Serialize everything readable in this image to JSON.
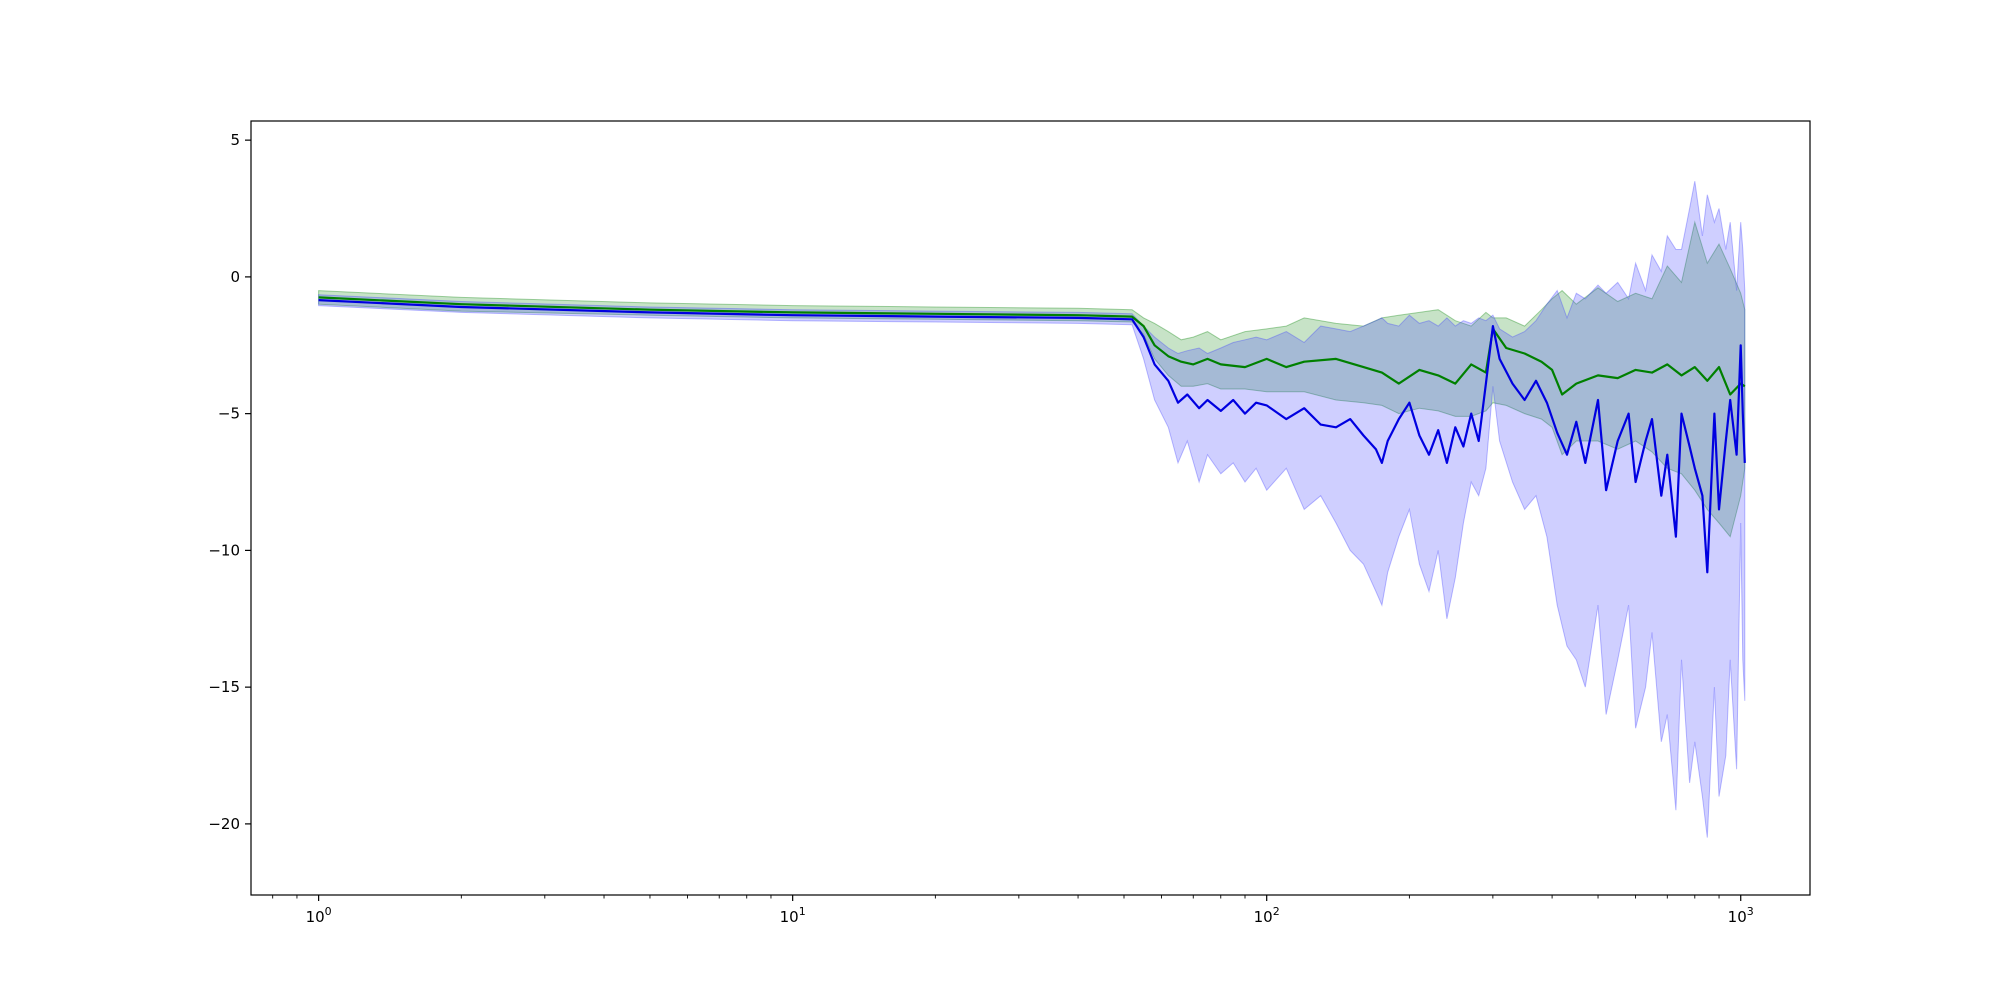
{
  "chart_data": {
    "type": "line",
    "x_scale": "log",
    "xlim": [
      0.72,
      1400
    ],
    "ylim": [
      -22.6,
      5.7
    ],
    "grid": false,
    "legend": "none",
    "x_ticks": [
      {
        "value": 1,
        "base": "10",
        "exp": "0"
      },
      {
        "value": 10,
        "base": "10",
        "exp": "1"
      },
      {
        "value": 100,
        "base": "10",
        "exp": "2"
      },
      {
        "value": 1000,
        "base": "10",
        "exp": "3"
      }
    ],
    "y_ticks": [
      {
        "value": 5,
        "label": "5"
      },
      {
        "value": 0,
        "label": "0"
      },
      {
        "value": -5,
        "label": "−5"
      },
      {
        "value": -10,
        "label": "−10"
      },
      {
        "value": -15,
        "label": "−15"
      },
      {
        "value": -20,
        "label": "−20"
      }
    ],
    "series": [
      {
        "color": "#008000",
        "band_color": "#008000",
        "band_opacity": 0.22,
        "x": [
          1,
          2,
          5,
          10,
          20,
          40,
          52,
          55,
          58,
          62,
          66,
          70,
          75,
          80,
          90,
          100,
          110,
          120,
          140,
          160,
          175,
          190,
          210,
          230,
          250,
          270,
          290,
          300,
          320,
          350,
          380,
          400,
          420,
          450,
          500,
          550,
          600,
          650,
          700,
          750,
          800,
          850,
          900,
          950,
          1000,
          1020
        ],
        "mean": [
          -0.75,
          -1.0,
          -1.2,
          -1.3,
          -1.35,
          -1.4,
          -1.45,
          -1.8,
          -2.5,
          -2.9,
          -3.1,
          -3.2,
          -3.0,
          -3.2,
          -3.3,
          -3.0,
          -3.3,
          -3.1,
          -3.0,
          -3.3,
          -3.5,
          -3.9,
          -3.4,
          -3.6,
          -3.9,
          -3.2,
          -3.5,
          -1.9,
          -2.6,
          -2.8,
          -3.1,
          -3.4,
          -4.3,
          -3.9,
          -3.6,
          -3.7,
          -3.4,
          -3.5,
          -3.2,
          -3.6,
          -3.3,
          -3.8,
          -3.3,
          -4.3,
          -3.9,
          -4.0
        ],
        "upper": [
          -0.5,
          -0.75,
          -0.95,
          -1.05,
          -1.1,
          -1.15,
          -1.2,
          -1.5,
          -1.7,
          -2.0,
          -2.3,
          -2.2,
          -2.0,
          -2.3,
          -2.0,
          -1.9,
          -1.8,
          -1.5,
          -1.7,
          -1.8,
          -1.5,
          -1.4,
          -1.3,
          -1.2,
          -1.6,
          -1.8,
          -1.3,
          -1.5,
          -1.5,
          -1.8,
          -1.2,
          -0.8,
          -0.5,
          -1.0,
          -0.4,
          -0.9,
          -0.6,
          -0.8,
          0.4,
          -0.2,
          2.0,
          0.5,
          1.2,
          0.3,
          -0.6,
          -1.2
        ],
        "lower": [
          -1.0,
          -1.25,
          -1.4,
          -1.5,
          -1.55,
          -1.6,
          -1.65,
          -2.1,
          -3.0,
          -3.6,
          -4.0,
          -4.0,
          -3.9,
          -4.1,
          -4.1,
          -4.2,
          -4.2,
          -4.2,
          -4.5,
          -4.6,
          -4.7,
          -5.0,
          -4.8,
          -4.9,
          -5.1,
          -5.1,
          -4.9,
          -4.6,
          -4.7,
          -5.0,
          -5.2,
          -5.5,
          -6.5,
          -6.0,
          -6.0,
          -6.3,
          -6.0,
          -6.4,
          -7.0,
          -7.2,
          -7.8,
          -8.5,
          -9.0,
          -9.5,
          -8.0,
          -7.0
        ]
      },
      {
        "color": "#0000e0",
        "band_color": "#4040ff",
        "band_opacity": 0.25,
        "x": [
          1,
          2,
          5,
          10,
          20,
          40,
          52,
          55,
          58,
          62,
          65,
          68,
          72,
          75,
          80,
          85,
          90,
          95,
          100,
          110,
          120,
          130,
          140,
          150,
          160,
          170,
          175,
          180,
          190,
          200,
          210,
          220,
          230,
          240,
          250,
          260,
          270,
          280,
          290,
          300,
          310,
          330,
          350,
          370,
          390,
          410,
          430,
          450,
          470,
          500,
          520,
          550,
          580,
          600,
          630,
          650,
          680,
          700,
          730,
          750,
          780,
          800,
          830,
          850,
          880,
          900,
          930,
          950,
          980,
          1000,
          1010,
          1020
        ],
        "mean": [
          -0.85,
          -1.1,
          -1.3,
          -1.4,
          -1.45,
          -1.5,
          -1.55,
          -2.2,
          -3.2,
          -3.8,
          -4.6,
          -4.3,
          -4.8,
          -4.5,
          -4.9,
          -4.5,
          -5.0,
          -4.6,
          -4.7,
          -5.2,
          -4.8,
          -5.4,
          -5.5,
          -5.2,
          -5.8,
          -6.3,
          -6.8,
          -6.0,
          -5.2,
          -4.6,
          -5.8,
          -6.5,
          -5.6,
          -6.8,
          -5.5,
          -6.2,
          -5.0,
          -6.0,
          -3.9,
          -1.8,
          -3.0,
          -3.9,
          -4.5,
          -3.8,
          -4.6,
          -5.7,
          -6.5,
          -5.3,
          -6.8,
          -4.5,
          -7.8,
          -6.0,
          -5.0,
          -7.5,
          -6.0,
          -5.2,
          -8.0,
          -6.5,
          -9.5,
          -5.0,
          -6.2,
          -7.0,
          -8.0,
          -10.8,
          -5.0,
          -8.5,
          -6.0,
          -4.5,
          -6.5,
          -2.5,
          -5.0,
          -6.8
        ],
        "upper": [
          -0.65,
          -0.9,
          -1.1,
          -1.2,
          -1.25,
          -1.3,
          -1.35,
          -1.8,
          -2.2,
          -2.6,
          -2.8,
          -2.7,
          -2.6,
          -2.8,
          -2.6,
          -2.4,
          -2.3,
          -2.2,
          -2.3,
          -2.0,
          -2.4,
          -1.8,
          -1.9,
          -2.0,
          -1.8,
          -1.6,
          -1.5,
          -1.7,
          -1.8,
          -1.4,
          -1.7,
          -1.6,
          -1.8,
          -1.5,
          -1.8,
          -1.6,
          -1.7,
          -1.5,
          -1.6,
          -1.4,
          -1.9,
          -2.2,
          -2.0,
          -1.6,
          -1.0,
          -0.5,
          -1.5,
          -0.6,
          -0.8,
          -0.3,
          -0.6,
          -0.2,
          -0.8,
          0.5,
          -0.5,
          0.8,
          0.2,
          1.5,
          1.0,
          1.0,
          2.5,
          3.5,
          1.5,
          3.0,
          2.0,
          2.5,
          1.0,
          2.0,
          -0.5,
          2.0,
          1.0,
          -0.5
        ],
        "lower": [
          -1.05,
          -1.3,
          -1.5,
          -1.6,
          -1.65,
          -1.7,
          -1.75,
          -3.0,
          -4.5,
          -5.5,
          -6.8,
          -6.0,
          -7.5,
          -6.5,
          -7.2,
          -6.8,
          -7.5,
          -7.0,
          -7.8,
          -7.0,
          -8.5,
          -8.0,
          -9.0,
          -10.0,
          -10.5,
          -11.5,
          -12.0,
          -10.8,
          -9.5,
          -8.5,
          -10.5,
          -11.5,
          -10.0,
          -12.5,
          -11.0,
          -9.0,
          -7.5,
          -8.0,
          -7.0,
          -4.0,
          -6.0,
          -7.5,
          -8.5,
          -8.0,
          -9.5,
          -12.0,
          -13.5,
          -14.0,
          -15.0,
          -12.0,
          -16.0,
          -14.0,
          -12.0,
          -16.5,
          -15.0,
          -13.0,
          -17.0,
          -16.0,
          -19.5,
          -14.0,
          -18.5,
          -17.0,
          -19.0,
          -20.5,
          -15.0,
          -19.0,
          -17.5,
          -14.0,
          -18.0,
          -9.0,
          -14.0,
          -15.5
        ]
      }
    ]
  }
}
